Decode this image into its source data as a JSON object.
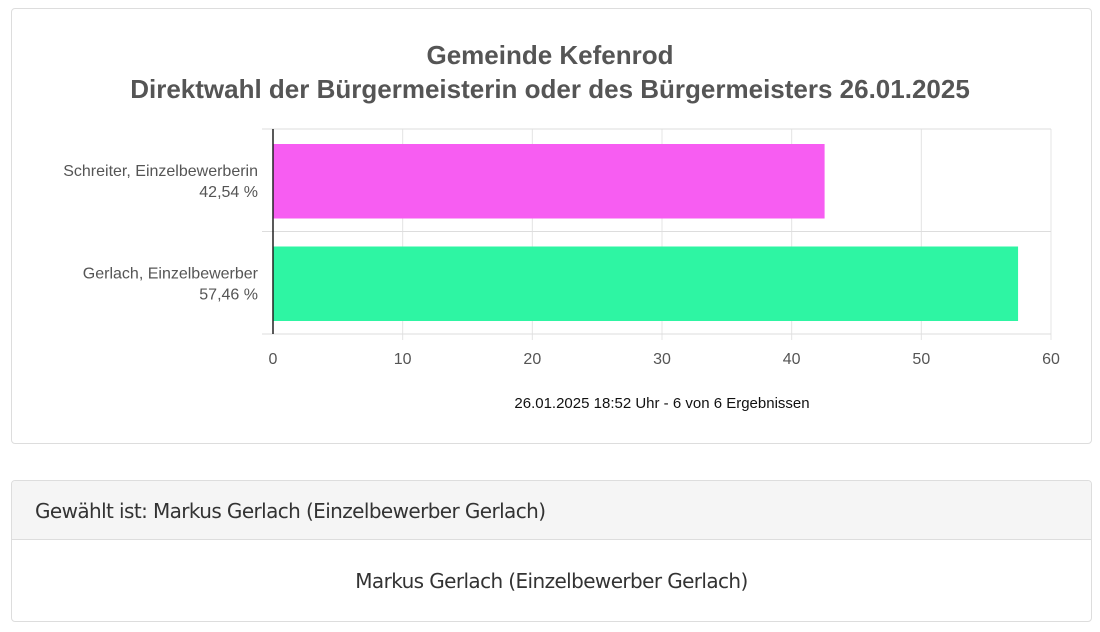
{
  "chart_data": {
    "type": "bar",
    "orientation": "horizontal",
    "title": [
      "Gemeinde Kefenrod",
      "Direktwahl der Bürgermeisterin oder des Bürgermeisters 26.01.2025"
    ],
    "categories": [
      "Schreiter, Einzelbewerberin",
      "Gerlach, Einzelbewerber"
    ],
    "category_value_labels": [
      "42,54 %",
      "57,46 %"
    ],
    "values": [
      42.54,
      57.46
    ],
    "colors": [
      "#f75df2",
      "#2ef5a3"
    ],
    "xlim": [
      0,
      60
    ],
    "xticks": [
      0,
      10,
      20,
      30,
      40,
      50,
      60
    ],
    "grid": true,
    "footer": "26.01.2025 18:52 Uhr - 6 von 6 Ergebnissen"
  },
  "result": {
    "header": "Gewählt ist: Markus Gerlach (Einzelbewerber Gerlach)",
    "body": "Markus Gerlach (Einzelbewerber Gerlach)"
  }
}
